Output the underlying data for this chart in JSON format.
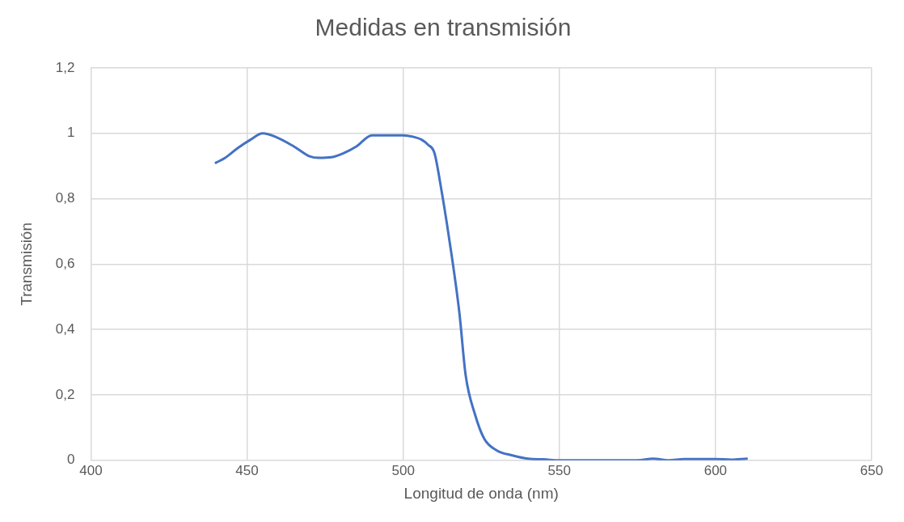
{
  "chart_data": {
    "type": "line",
    "title": "Medidas en transmisión",
    "xlabel": "Longitud de onda (nm)",
    "ylabel": "Transmisión",
    "xlim": [
      400,
      650
    ],
    "xticks": [
      400,
      450,
      500,
      550,
      600,
      650
    ],
    "ylim": [
      0,
      1.2
    ],
    "yticks": [
      {
        "value": 0,
        "label": "0"
      },
      {
        "value": 0.2,
        "label": "0,2"
      },
      {
        "value": 0.4,
        "label": "0,4"
      },
      {
        "value": 0.6,
        "label": "0,6"
      },
      {
        "value": 0.8,
        "label": "0,8"
      },
      {
        "value": 1,
        "label": "1"
      },
      {
        "value": 1.2,
        "label": "1,2"
      }
    ],
    "grid": true,
    "legend": false,
    "marker": "none",
    "line_style": "solid",
    "x": [
      440,
      443,
      447,
      451,
      455,
      459,
      465,
      470,
      473,
      477,
      481,
      485,
      490,
      495,
      500,
      503,
      506,
      508,
      510,
      512,
      515,
      518,
      520,
      523,
      526,
      530,
      535,
      540,
      545,
      550,
      560,
      570,
      575,
      580,
      585,
      590,
      595,
      600,
      605,
      610
    ],
    "series": [
      {
        "color": "#4472c4",
        "values": [
          0.91,
          0.925,
          0.955,
          0.98,
          1.0,
          0.99,
          0.96,
          0.93,
          0.925,
          0.927,
          0.94,
          0.96,
          0.994,
          0.994,
          0.994,
          0.99,
          0.98,
          0.965,
          0.94,
          0.84,
          0.66,
          0.45,
          0.26,
          0.14,
          0.065,
          0.03,
          0.015,
          0.005,
          0.003,
          0,
          0,
          0,
          0,
          0.005,
          0,
          0.004,
          0.004,
          0.004,
          0.002,
          0.005
        ]
      }
    ]
  }
}
